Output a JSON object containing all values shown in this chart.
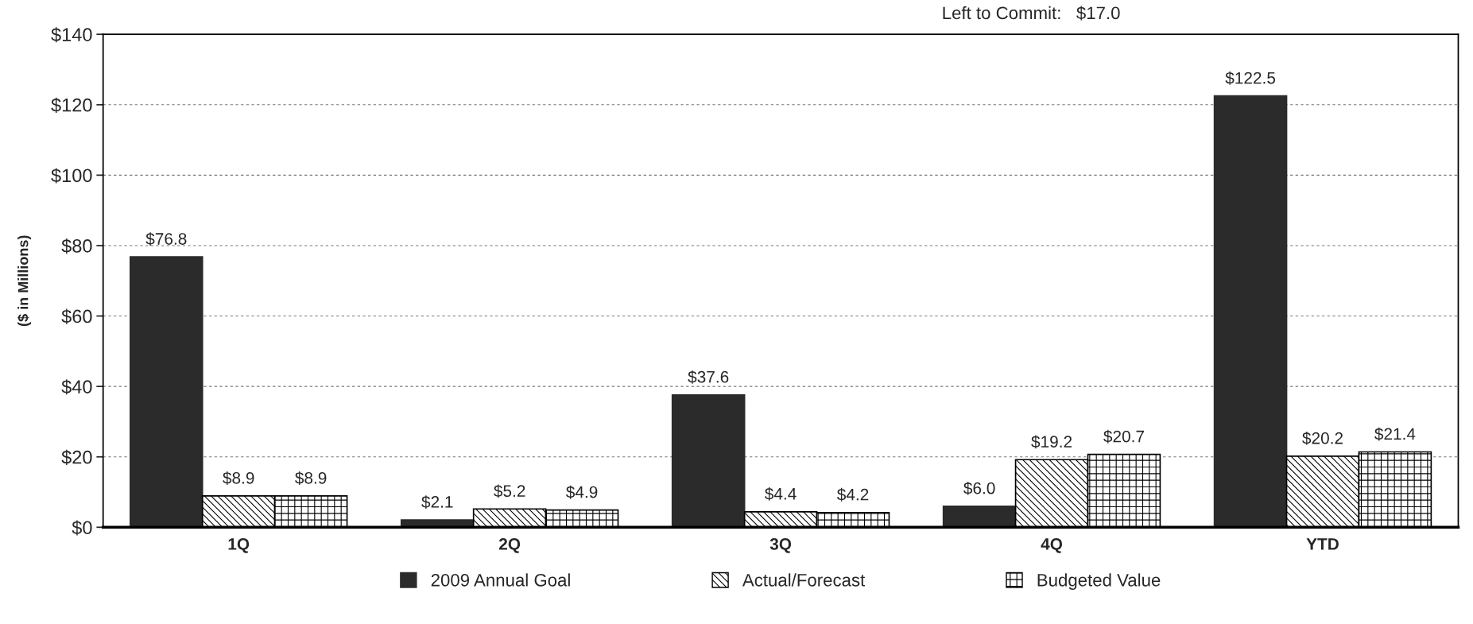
{
  "chart_data": {
    "type": "bar",
    "ylabel": "($ in Millions)",
    "categories": [
      "1Q",
      "2Q",
      "3Q",
      "4Q",
      "YTD"
    ],
    "series": [
      {
        "name": "2009 Annual Goal",
        "color": "#2b2b2b",
        "values": [
          76.8,
          2.1,
          37.6,
          6.0,
          122.5
        ],
        "value_labels": [
          "$76.8",
          "$2.1",
          "$37.6",
          "$6.0",
          "$122.5"
        ]
      },
      {
        "name": "Actual/Forecast",
        "color": "#000000",
        "values": [
          8.9,
          5.2,
          4.4,
          19.2,
          20.2
        ],
        "value_labels": [
          "$8.9",
          "$5.2",
          "$4.4",
          "$19.2",
          "$20.2"
        ]
      },
      {
        "name": "Budgeted Value",
        "color": "#000000",
        "values": [
          8.9,
          4.9,
          4.2,
          20.7,
          21.4
        ],
        "value_labels": [
          "$8.9",
          "$4.9",
          "$4.2",
          "$20.7",
          "$21.4"
        ]
      }
    ],
    "ylim": [
      0,
      140
    ],
    "yticks": [
      {
        "value": 0,
        "label": "$0"
      },
      {
        "value": 20,
        "label": "$20"
      },
      {
        "value": 40,
        "label": "$40"
      },
      {
        "value": 60,
        "label": "$60"
      },
      {
        "value": 80,
        "label": "$80"
      },
      {
        "value": 100,
        "label": "$100"
      },
      {
        "value": 120,
        "label": "$120"
      },
      {
        "value": 140,
        "label": "$140"
      }
    ],
    "grid": "y",
    "legend": "bottom",
    "annotations": [
      "Left to Commit:   $17.0"
    ]
  }
}
